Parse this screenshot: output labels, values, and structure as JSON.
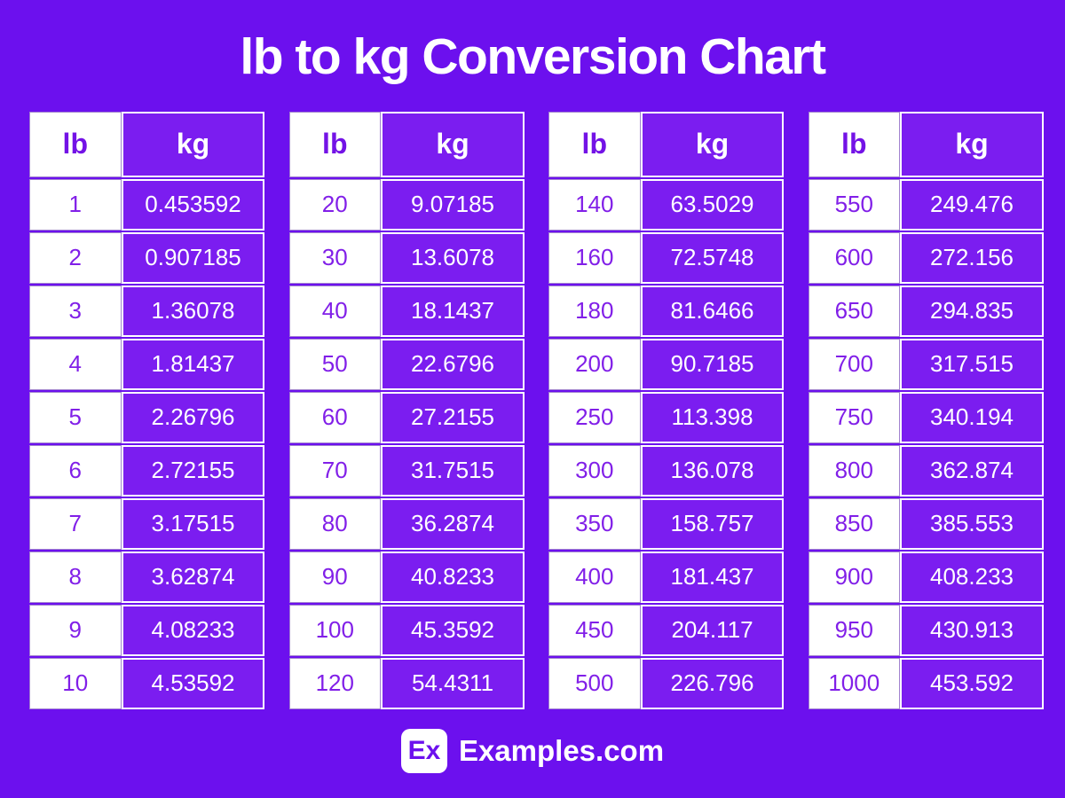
{
  "title": "lb to kg Conversion Chart",
  "column_headers": {
    "lb": "lb",
    "kg": "kg"
  },
  "chart_data": {
    "type": "table",
    "title": "lb to kg Conversion Chart",
    "columns": [
      "lb",
      "kg"
    ],
    "tables": [
      {
        "rows": [
          [
            1,
            0.453592
          ],
          [
            2,
            0.907185
          ],
          [
            3,
            1.36078
          ],
          [
            4,
            1.81437
          ],
          [
            5,
            2.26796
          ],
          [
            6,
            2.72155
          ],
          [
            7,
            3.17515
          ],
          [
            8,
            3.62874
          ],
          [
            9,
            4.08233
          ],
          [
            10,
            4.53592
          ]
        ]
      },
      {
        "rows": [
          [
            20,
            9.07185
          ],
          [
            30,
            13.6078
          ],
          [
            40,
            18.1437
          ],
          [
            50,
            22.6796
          ],
          [
            60,
            27.2155
          ],
          [
            70,
            31.7515
          ],
          [
            80,
            36.2874
          ],
          [
            90,
            40.8233
          ],
          [
            100,
            45.3592
          ],
          [
            120,
            54.4311
          ]
        ]
      },
      {
        "rows": [
          [
            140,
            63.5029
          ],
          [
            160,
            72.5748
          ],
          [
            180,
            81.6466
          ],
          [
            200,
            90.7185
          ],
          [
            250,
            113.398
          ],
          [
            300,
            136.078
          ],
          [
            350,
            158.757
          ],
          [
            400,
            181.437
          ],
          [
            450,
            204.117
          ],
          [
            500,
            226.796
          ]
        ]
      },
      {
        "rows": [
          [
            550,
            249.476
          ],
          [
            600,
            272.156
          ],
          [
            650,
            294.835
          ],
          [
            700,
            317.515
          ],
          [
            750,
            340.194
          ],
          [
            800,
            362.874
          ],
          [
            850,
            385.553
          ],
          [
            900,
            408.233
          ],
          [
            950,
            430.913
          ],
          [
            1000,
            453.592
          ]
        ]
      }
    ]
  },
  "footer": {
    "logo_text": "Ex",
    "brand": "Examples.com"
  },
  "colors": {
    "background": "#6C10EE",
    "kg_cell_fill": "#7B1DF0",
    "lb_value_text": "#811FE8",
    "lb_header_text": "#7312E6",
    "white": "#FFFFFF"
  }
}
